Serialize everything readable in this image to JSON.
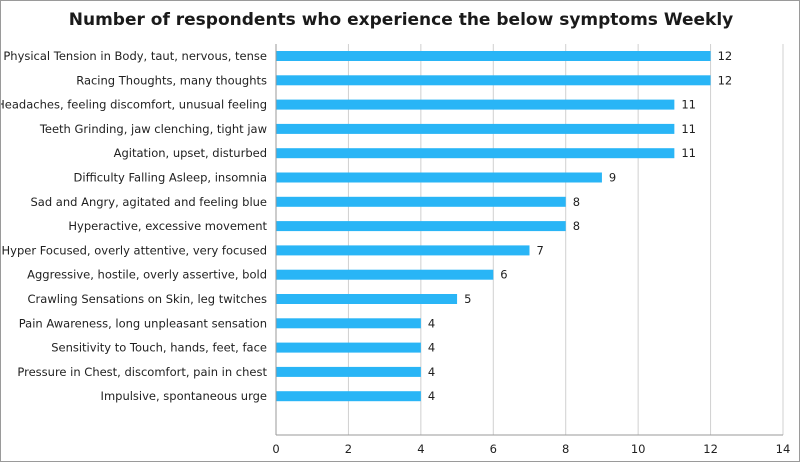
{
  "chart_data": {
    "type": "bar",
    "orientation": "horizontal",
    "title": "Number of respondents who experience the below symptoms Weekly",
    "xlabel": "",
    "ylabel": "",
    "xlim": [
      0,
      14
    ],
    "x_ticks": [
      0,
      2,
      4,
      6,
      8,
      10,
      12,
      14
    ],
    "grid": "vertical",
    "legend": "none",
    "bar_color": "#29B5F6",
    "categories": [
      "Physical Tension in Body, taut, nervous, tense",
      "Racing Thoughts, many thoughts",
      "Headaches, feeling discomfort, unusual feeling",
      "Teeth Grinding, jaw clenching, tight jaw",
      "Agitation, upset, disturbed",
      "Difficulty Falling Asleep, insomnia",
      "Sad and Angry, agitated and feeling blue",
      "Hyperactive, excessive movement",
      "Hyper Focused, overly attentive, very focused",
      "Aggressive, hostile, overly assertive, bold",
      "Crawling Sensations on Skin, leg twitches",
      "Pain Awareness, long unpleasant sensation",
      "Sensitivity to Touch, hands, feet, face",
      "Pressure in Chest, discomfort, pain in chest",
      "Impulsive, spontaneous urge"
    ],
    "values": [
      12,
      12,
      11,
      11,
      11,
      9,
      8,
      8,
      7,
      6,
      5,
      4,
      4,
      4,
      4
    ]
  }
}
